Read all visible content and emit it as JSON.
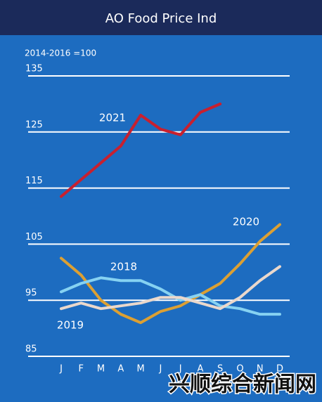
{
  "chart_data": {
    "type": "line",
    "title": "AO Food Price Ind",
    "subtitle": "2014-2016 =100",
    "categories": [
      "J",
      "F",
      "M",
      "A",
      "M",
      "J",
      "J",
      "A",
      "S",
      "O",
      "N",
      "D"
    ],
    "series": [
      {
        "name": "2021",
        "color": "#c8202f",
        "values": [
          113.5,
          116.5,
          119.5,
          122.5,
          128,
          125.5,
          124.5,
          128.5,
          130,
          null,
          null,
          null
        ]
      },
      {
        "name": "2020",
        "color": "#dca033",
        "values": [
          102.5,
          99.5,
          95,
          92.5,
          91,
          93,
          94,
          96,
          98,
          101.5,
          105.5,
          108.5
        ]
      },
      {
        "name": "2018",
        "color": "#86d2f2",
        "values": [
          96.5,
          98,
          99,
          98.5,
          98.5,
          97,
          95,
          96,
          94,
          93.5,
          92.5,
          92.5
        ]
      },
      {
        "name": "2019",
        "color": "#ead8cc",
        "values": [
          93.5,
          94.5,
          93.5,
          94,
          94.5,
          95.5,
          95.5,
          94.5,
          93.5,
          95.5,
          98.5,
          101
        ]
      }
    ],
    "ylim": [
      85,
      135
    ],
    "yticks": [
      85,
      95,
      105,
      115,
      125,
      135
    ],
    "grid": true
  },
  "watermark": "兴顺综合新闻网"
}
